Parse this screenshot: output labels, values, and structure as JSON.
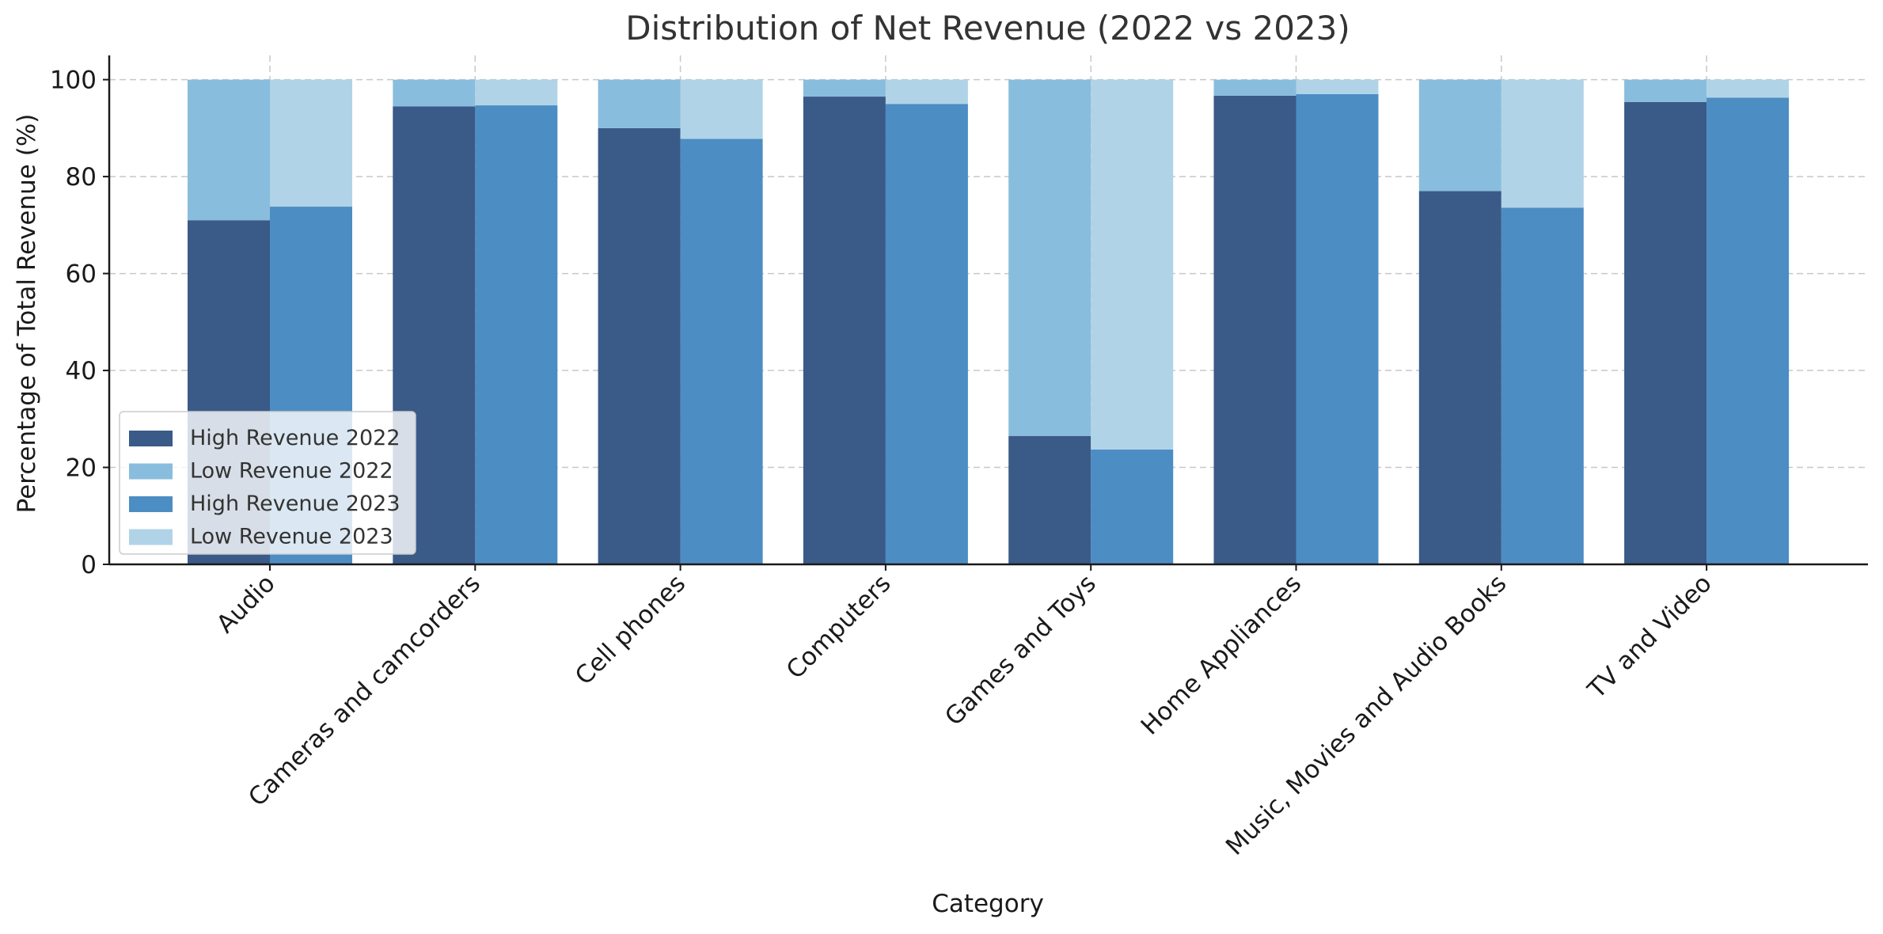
{
  "chart_data": {
    "type": "bar",
    "stacked": true,
    "grouped": true,
    "title": "Distribution of Net Revenue (2022 vs 2023)",
    "xlabel": "Category",
    "ylabel": "Percentage of Total Revenue (%)",
    "ylim": [
      0,
      105
    ],
    "yticks": [
      0,
      20,
      40,
      60,
      80,
      100
    ],
    "grid": true,
    "legend_position": "lower-left",
    "categories": [
      "Audio",
      "Cameras and camcorders",
      "Cell phones",
      "Computers",
      "Games and Toys",
      "Home Appliances",
      "Music, Movies and Audio Books",
      "TV and Video"
    ],
    "series": [
      {
        "name": "High Revenue 2022",
        "group": "2022",
        "color": "#3a5a88",
        "values": [
          71,
          94.5,
          90,
          96.5,
          26.5,
          96.7,
          77,
          95.4
        ]
      },
      {
        "name": "Low Revenue 2022",
        "group": "2022",
        "color": "#89bddd",
        "values": [
          29,
          5.5,
          10,
          3.5,
          73.5,
          3.3,
          23,
          4.6
        ]
      },
      {
        "name": "High Revenue 2023",
        "group": "2023",
        "color": "#4c8dc3",
        "values": [
          73.8,
          94.7,
          87.8,
          95,
          23.7,
          97,
          73.6,
          96.3
        ]
      },
      {
        "name": "Low Revenue 2023",
        "group": "2023",
        "color": "#b1d3e7",
        "values": [
          26.2,
          5.3,
          12.2,
          5,
          76.3,
          3,
          26.4,
          3.7
        ]
      }
    ]
  }
}
